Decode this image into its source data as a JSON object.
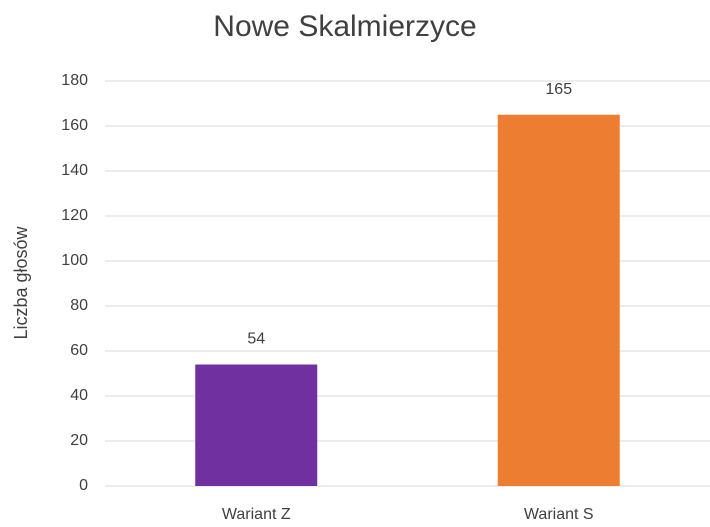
{
  "chart_data": {
    "type": "bar",
    "title": "Nowe Skalmierzyce",
    "y_label": "Liczba głosów",
    "categories": [
      "Wariant Z",
      "Wariant S"
    ],
    "values": [
      54,
      165
    ],
    "colors": [
      "#7030a0",
      "#ed7d31"
    ],
    "ylim": [
      0,
      180
    ],
    "yticks": [
      0,
      20,
      40,
      60,
      80,
      100,
      120,
      140,
      160,
      180
    ],
    "grid": true,
    "data_labels": true
  }
}
